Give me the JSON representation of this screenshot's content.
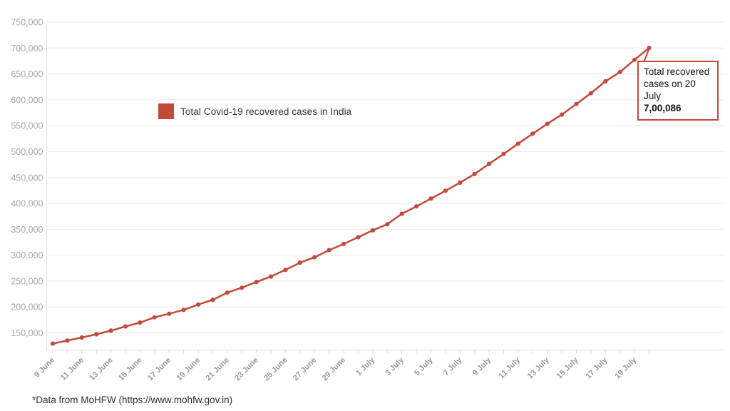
{
  "theme": {
    "accent": "#c24a3c",
    "grid_color": "#ececec",
    "axis_line_color": "#e3e3e3",
    "tick_color": "#dcdcdc",
    "y_label_color": "#a8a8a8",
    "x_label_color": "#999999"
  },
  "legend": {
    "label": "Total Covid-19 recovered cases in India"
  },
  "annotation": {
    "line1": "Total recovered",
    "line2": "cases on 20 July",
    "value": "7,00,086"
  },
  "footer": {
    "text": "*Data from MoHFW (https://www.mohfw.gov.in)"
  },
  "chart_data": {
    "type": "line",
    "title": "",
    "xlabel": "",
    "ylabel": "",
    "grid": "horizontal",
    "legend_position": "inside-top-left",
    "ylim": [
      150000,
      750000
    ],
    "y_tick_labels": [
      "150,000",
      "200,000",
      "250,000",
      "300,000",
      "350,000",
      "400,000",
      "450,000",
      "500,000",
      "550,000",
      "600,000",
      "650,000",
      "700,000",
      "750,000"
    ],
    "x_tick_every": 2,
    "x": [
      "9 June",
      "10 June",
      "11 June",
      "12 June",
      "13 June",
      "14 June",
      "15 June",
      "16 June",
      "17 June",
      "18 June",
      "19 June",
      "20 June",
      "21 June",
      "22 June",
      "23 June",
      "24 June",
      "25 June",
      "26 June",
      "27 June",
      "28 June",
      "29 June",
      "30 June",
      "1 July",
      "2 July",
      "3 July",
      "4 July",
      "5 July",
      "6 July",
      "7 July",
      "8 July",
      "9 July",
      "10 July",
      "11 July",
      "12 July",
      "13 July",
      "14 July",
      "15 July",
      "16 July",
      "17 July",
      "18 July",
      "19 July",
      "20 July"
    ],
    "series": [
      {
        "name": "Total Covid-19 recovered cases in India",
        "color": "#c24a3c",
        "values": [
          129215,
          135206,
          141029,
          147195,
          154330,
          162379,
          169798,
          180013,
          186935,
          194325,
          204711,
          213831,
          227756,
          237196,
          248190,
          258685,
          271697,
          285637,
          295881,
          309713,
          321723,
          334822,
          347979,
          359860,
          379892,
          394227,
          409083,
          424433,
          439948,
          456831,
          476378,
          495513,
          515386,
          534621,
          553471,
          571460,
          592032,
          612815,
          635757,
          653751,
          677423,
          700086
        ]
      }
    ],
    "annotation_target": {
      "x": "20 July",
      "value": 700086
    }
  }
}
